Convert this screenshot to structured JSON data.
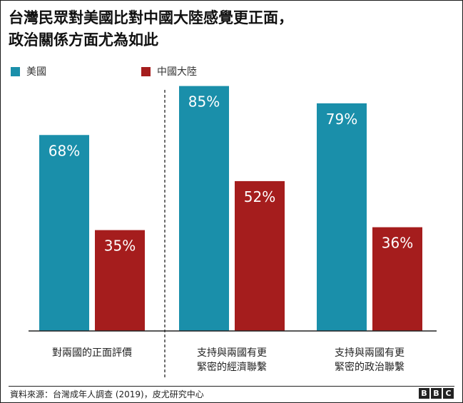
{
  "title_line1": "台灣民眾對美國比對中國大陸感覺更正面，",
  "title_line2": "政治關係方面尤為如此",
  "colors": {
    "usa": "#1a8faa",
    "china": "#a51d1d"
  },
  "chart_data": {
    "type": "bar",
    "categories": [
      [
        "對兩國的正面評價"
      ],
      [
        "支持與兩國有更",
        "緊密的經濟聯繫"
      ],
      [
        "支持與兩國有更",
        "緊密的政治聯繫"
      ]
    ],
    "series": [
      {
        "name": "美國",
        "values": [
          68,
          85,
          79
        ],
        "labels": [
          "68%",
          "85%",
          "79%"
        ]
      },
      {
        "name": "中國大陸",
        "values": [
          35,
          52,
          36
        ],
        "labels": [
          "35%",
          "52%",
          "36%"
        ]
      }
    ],
    "ylim": [
      0,
      100
    ],
    "legend_position": "top-left",
    "grid": false
  },
  "footer": {
    "source": "資料來源：台灣成年人調查 (2019)，皮尤研究中心",
    "logo": [
      "B",
      "B",
      "C"
    ]
  }
}
